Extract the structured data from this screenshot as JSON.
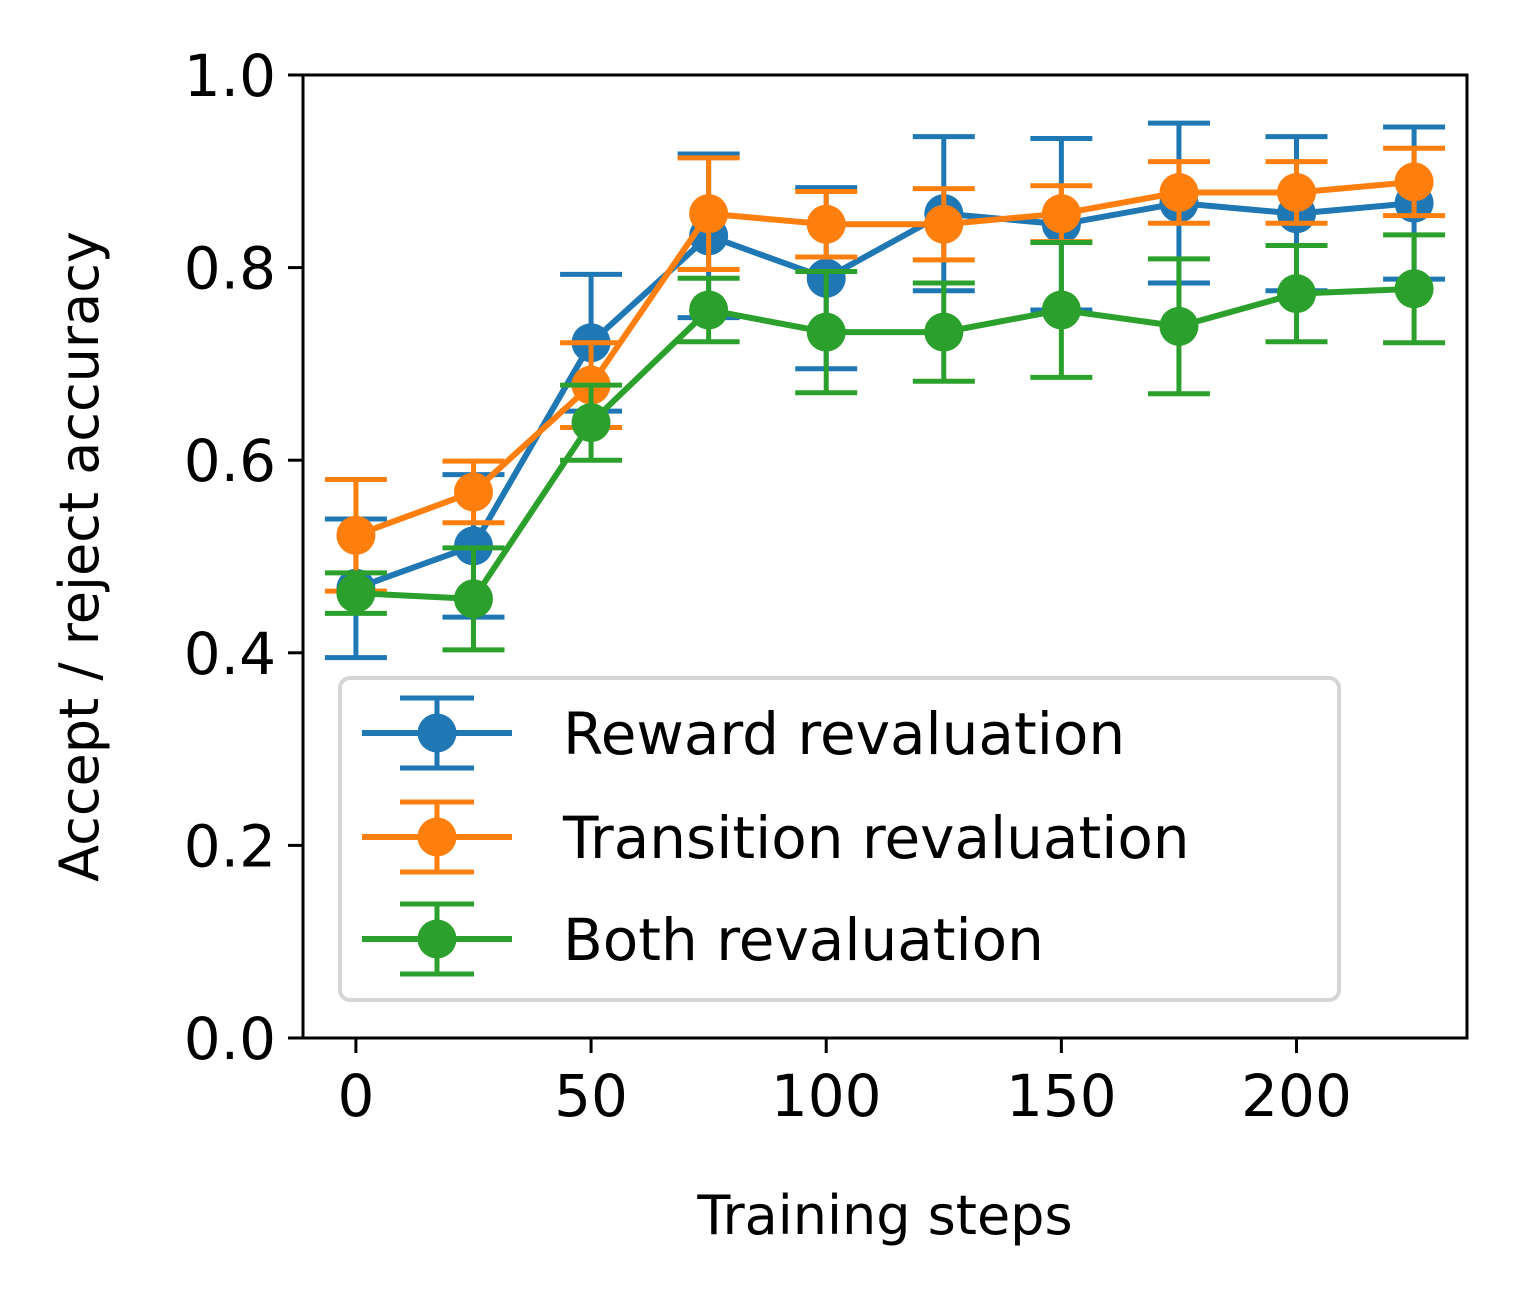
{
  "chart_data": {
    "type": "line",
    "title": "",
    "xlabel": "Training steps",
    "ylabel": "Accept / reject accuracy",
    "xlim": [
      -11.25,
      236.25
    ],
    "ylim": [
      0.0,
      1.0
    ],
    "xticks": [
      0,
      50,
      100,
      150,
      200
    ],
    "xtick_labels": [
      "0",
      "50",
      "100",
      "150",
      "200"
    ],
    "yticks": [
      0.0,
      0.2,
      0.4,
      0.6,
      0.8,
      1.0
    ],
    "ytick_labels": [
      "0.0",
      "0.2",
      "0.4",
      "0.6",
      "0.8",
      "1.0"
    ],
    "grid": false,
    "legend_position": "lower-right",
    "x": [
      0,
      25,
      50,
      75,
      100,
      125,
      150,
      175,
      200,
      225
    ],
    "series": [
      {
        "name": "Reward revaluation",
        "color": "#1f77b4",
        "values": [
          0.467,
          0.511,
          0.722,
          0.833,
          0.789,
          0.856,
          0.845,
          0.867,
          0.856,
          0.867
        ],
        "error": [
          0.072,
          0.074,
          0.071,
          0.085,
          0.094,
          0.08,
          0.089,
          0.083,
          0.08,
          0.079
        ]
      },
      {
        "name": "Transition revaluation",
        "color": "#ff7f0e",
        "values": [
          0.522,
          0.567,
          0.678,
          0.856,
          0.845,
          0.845,
          0.856,
          0.878,
          0.878,
          0.889
        ],
        "error": [
          0.058,
          0.032,
          0.044,
          0.058,
          0.034,
          0.037,
          0.029,
          0.032,
          0.032,
          0.035
        ]
      },
      {
        "name": "Both revaluation",
        "color": "#2ca02c",
        "values": [
          0.462,
          0.456,
          0.639,
          0.756,
          0.733,
          0.733,
          0.756,
          0.739,
          0.773,
          0.778
        ],
        "error": [
          0.021,
          0.053,
          0.039,
          0.033,
          0.063,
          0.051,
          0.07,
          0.07,
          0.05,
          0.056
        ]
      }
    ]
  }
}
